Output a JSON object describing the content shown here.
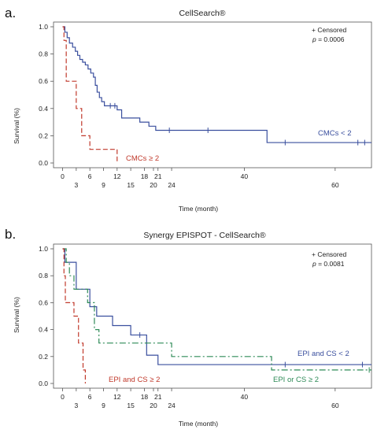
{
  "chart_data": [
    {
      "type": "line",
      "panel_label": "a.",
      "title": "CellSearch®",
      "xlabel": "Time (month)",
      "ylabel": "Survival (%)",
      "xlim": [
        -2,
        68
      ],
      "ylim": [
        0,
        1.0
      ],
      "y_ticks": [
        "0.0",
        "0.2",
        "0.4",
        "0.6",
        "0.8",
        "1.0"
      ],
      "x_ticks_row1": [
        "0",
        "6",
        "12",
        "18",
        "21",
        "40"
      ],
      "x_ticks_row2": [
        "3",
        "9",
        "15",
        "20",
        "24",
        "60"
      ],
      "censored_note": "+ Censored",
      "p_label": "p",
      "p_value": " = 0.0006",
      "series": [
        {
          "name": "CMCs < 2",
          "color": "#3a4f9e",
          "dash": "solid",
          "steps": [
            [
              0,
              1.0
            ],
            [
              0.5,
              0.96
            ],
            [
              1.0,
              0.92
            ],
            [
              1.5,
              0.88
            ],
            [
              2.2,
              0.85
            ],
            [
              2.8,
              0.82
            ],
            [
              3.3,
              0.79
            ],
            [
              3.8,
              0.76
            ],
            [
              4.4,
              0.74
            ],
            [
              5.0,
              0.72
            ],
            [
              5.6,
              0.69
            ],
            [
              6.2,
              0.66
            ],
            [
              6.8,
              0.63
            ],
            [
              7.2,
              0.57
            ],
            [
              7.6,
              0.52
            ],
            [
              8.1,
              0.48
            ],
            [
              8.6,
              0.45
            ],
            [
              9.2,
              0.42
            ],
            [
              12.0,
              0.39
            ],
            [
              13.0,
              0.33
            ],
            [
              17.0,
              0.3
            ],
            [
              19.0,
              0.27
            ],
            [
              20.5,
              0.24
            ],
            [
              45.0,
              0.15
            ],
            [
              68.0,
              0.15
            ]
          ],
          "censor_x": [
            10.5,
            11.5,
            23.5,
            32.0,
            49.0,
            65.0,
            66.5
          ]
        },
        {
          "name": "CMCs ≥ 2",
          "color": "#c0392b",
          "dash": "dashed",
          "steps": [
            [
              0,
              1.0
            ],
            [
              0.3,
              0.9
            ],
            [
              0.8,
              0.6
            ],
            [
              3.0,
              0.4
            ],
            [
              4.2,
              0.2
            ],
            [
              6.0,
              0.1
            ],
            [
              12.0,
              0.0
            ]
          ],
          "censor_x": []
        }
      ]
    },
    {
      "type": "line",
      "panel_label": "b.",
      "title": "Synergy EPISPOT - CellSearch®",
      "xlabel": "Time (month)",
      "ylabel": "Survival (%)",
      "xlim": [
        -2,
        68
      ],
      "ylim": [
        0,
        1.0
      ],
      "y_ticks": [
        "0.0",
        "0.2",
        "0.4",
        "0.6",
        "0.8",
        "1.0"
      ],
      "x_ticks_row1": [
        "0",
        "6",
        "12",
        "18",
        "21",
        "40"
      ],
      "x_ticks_row2": [
        "3",
        "9",
        "15",
        "20",
        "24",
        "60"
      ],
      "censored_note": "+ Censored",
      "p_label": "p",
      "p_value": " = 0.0081",
      "series": [
        {
          "name": "EPI and CS < 2",
          "color": "#3a4f9e",
          "dash": "solid",
          "steps": [
            [
              0,
              1.0
            ],
            [
              0.5,
              0.9
            ],
            [
              3.0,
              0.7
            ],
            [
              6.0,
              0.57
            ],
            [
              7.5,
              0.5
            ],
            [
              11.0,
              0.43
            ],
            [
              15.0,
              0.36
            ],
            [
              18.5,
              0.21
            ],
            [
              21.0,
              0.14
            ],
            [
              68.0,
              0.14
            ]
          ],
          "censor_x": [
            17.0,
            49.0,
            66.0
          ]
        },
        {
          "name": "EPI or CS ≥ 2",
          "color": "#2e8b57",
          "dash": "dashdot",
          "steps": [
            [
              0,
              1.0
            ],
            [
              0.8,
              0.9
            ],
            [
              1.5,
              0.8
            ],
            [
              2.5,
              0.7
            ],
            [
              5.5,
              0.6
            ],
            [
              7.0,
              0.4
            ],
            [
              8.0,
              0.3
            ],
            [
              24.0,
              0.2
            ],
            [
              46.0,
              0.1
            ],
            [
              68.0,
              0.1
            ]
          ],
          "censor_x": [
            67.5
          ]
        },
        {
          "name": "EPI and CS ≥ 2",
          "color": "#c0392b",
          "dash": "dashed",
          "steps": [
            [
              0,
              1.0
            ],
            [
              0.3,
              0.8
            ],
            [
              0.6,
              0.6
            ],
            [
              2.5,
              0.5
            ],
            [
              3.5,
              0.3
            ],
            [
              4.5,
              0.1
            ],
            [
              5.0,
              0.0
            ]
          ],
          "censor_x": []
        }
      ]
    }
  ]
}
